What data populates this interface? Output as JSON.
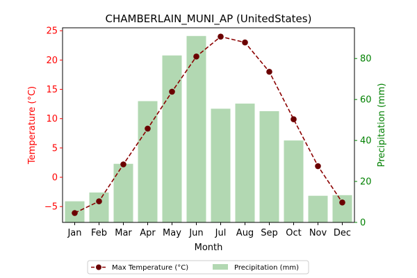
{
  "chart_data": {
    "type": "bar+line",
    "title": "CHAMBERLAIN_MUNI_AP (UnitedStates)",
    "xlabel": "Month",
    "categories": [
      "Jan",
      "Feb",
      "Mar",
      "Apr",
      "May",
      "Jun",
      "Jul",
      "Aug",
      "Sep",
      "Oct",
      "Nov",
      "Dec"
    ],
    "series": [
      {
        "name": "Max Temperature (°C)",
        "type": "line",
        "axis": "left",
        "values": [
          -6.1,
          -4.1,
          2.2,
          8.3,
          14.6,
          20.6,
          24.0,
          23.0,
          18.0,
          9.9,
          1.9,
          -4.3
        ]
      },
      {
        "name": "Precipitation (mm)",
        "type": "bar",
        "axis": "right",
        "values": [
          10.3,
          14.6,
          28.6,
          59.2,
          81.5,
          91.0,
          55.5,
          58.0,
          54.3,
          40.0,
          13.0,
          13.3
        ]
      }
    ],
    "ylabel_left": "Temperature (°C)",
    "ylabel_right": "Precipitation (mm)",
    "ylim_left": [
      -7.7,
      25.5
    ],
    "ylim_right": [
      0,
      95
    ],
    "yticks_left": [
      -5,
      0,
      5,
      10,
      15,
      20,
      25
    ],
    "yticks_right": [
      0,
      20,
      40,
      60,
      80
    ],
    "legend_position": "bottom-center",
    "grid": false,
    "colors": {
      "line": "#8b0000",
      "marker": "#6b0000",
      "bar": "#b2d8b2",
      "left_axis": "#ff0000",
      "right_axis": "#008000"
    }
  }
}
